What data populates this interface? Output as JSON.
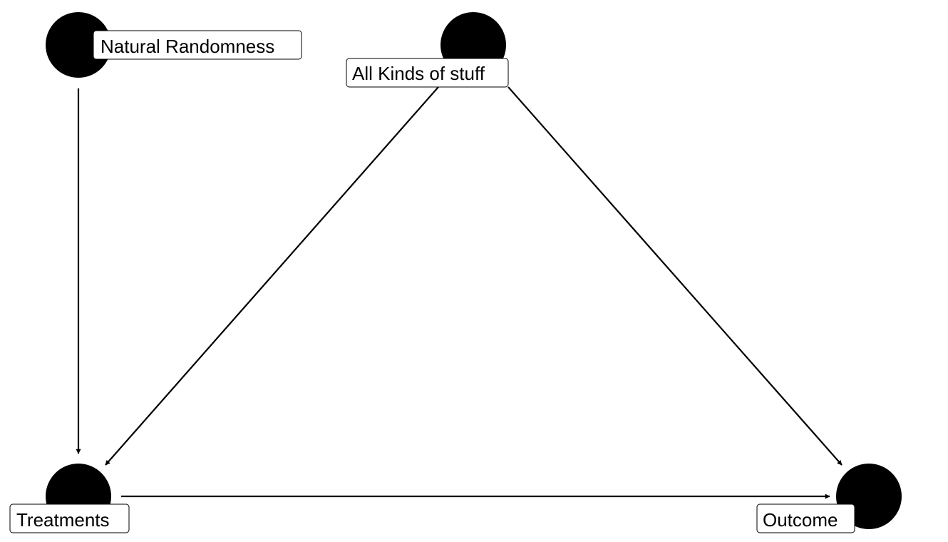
{
  "nodes": {
    "natural_randomness": {
      "label": "Natural Randomness"
    },
    "all_kinds_of_stuff": {
      "label": "All Kinds of stuff"
    },
    "treatments": {
      "label": "Treatments"
    },
    "outcome": {
      "label": "Outcome"
    }
  },
  "edges": [
    {
      "from": "Natural Randomness",
      "to": "Treatments"
    },
    {
      "from": "All Kinds of stuff",
      "to": "Treatments"
    },
    {
      "from": "All Kinds of stuff",
      "to": "Outcome"
    },
    {
      "from": "Treatments",
      "to": "Outcome"
    }
  ],
  "colors": {
    "node": "#000000",
    "edge": "#000000",
    "label_background": "#ffffff"
  }
}
